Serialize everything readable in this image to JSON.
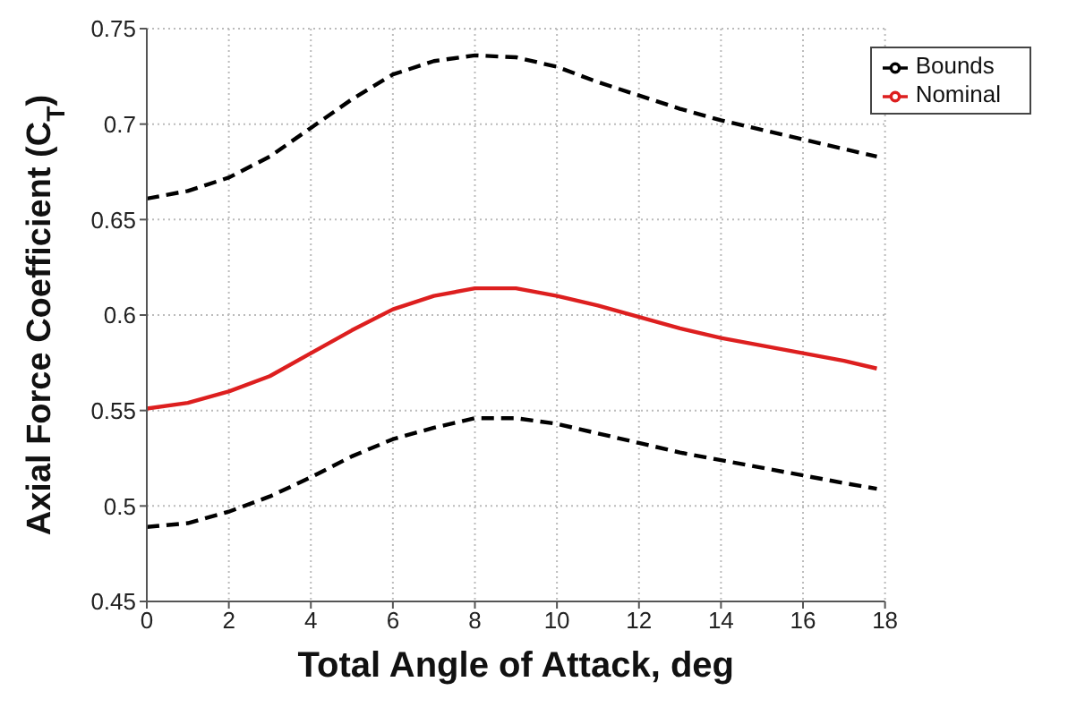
{
  "chart_data": {
    "type": "line",
    "xlabel": "Total Angle of Attack, deg",
    "ylabel": "Axial Force Coefficient (C$_{T}$)",
    "x": [
      0,
      1,
      2,
      3,
      4,
      5,
      6,
      7,
      8,
      9,
      10,
      11,
      12,
      13,
      14,
      15,
      16,
      17,
      17.8
    ],
    "series": [
      {
        "name": "Nominal",
        "color": "#dd1f1f",
        "line_style": "solid",
        "values": [
          0.551,
          0.554,
          0.56,
          0.568,
          0.58,
          0.592,
          0.603,
          0.61,
          0.614,
          0.614,
          0.61,
          0.605,
          0.599,
          0.593,
          0.588,
          0.584,
          0.58,
          0.576,
          0.572
        ]
      },
      {
        "name": "Bounds",
        "color": "#000000",
        "line_style": "dashed",
        "values": [
          0.661,
          0.665,
          0.672,
          0.683,
          0.698,
          0.713,
          0.726,
          0.733,
          0.736,
          0.735,
          0.73,
          0.722,
          0.715,
          0.708,
          0.702,
          0.697,
          0.692,
          0.687,
          0.683
        ]
      },
      {
        "color": "#000000",
        "line_style": "dashed",
        "values": [
          0.489,
          0.491,
          0.497,
          0.505,
          0.515,
          0.526,
          0.535,
          0.541,
          0.546,
          0.546,
          0.543,
          0.538,
          0.533,
          0.528,
          0.524,
          0.52,
          0.516,
          0.512,
          0.509
        ]
      }
    ],
    "xlim": [
      0,
      18
    ],
    "xticks": [
      0,
      2,
      4,
      6,
      8,
      10,
      12,
      14,
      16,
      18
    ],
    "ylim": [
      0.45,
      0.75
    ],
    "yticks": [
      0.45,
      0.5,
      0.55,
      0.6,
      0.65,
      0.7,
      0.75
    ],
    "grid": true,
    "legend": "top right",
    "marker": "none"
  }
}
